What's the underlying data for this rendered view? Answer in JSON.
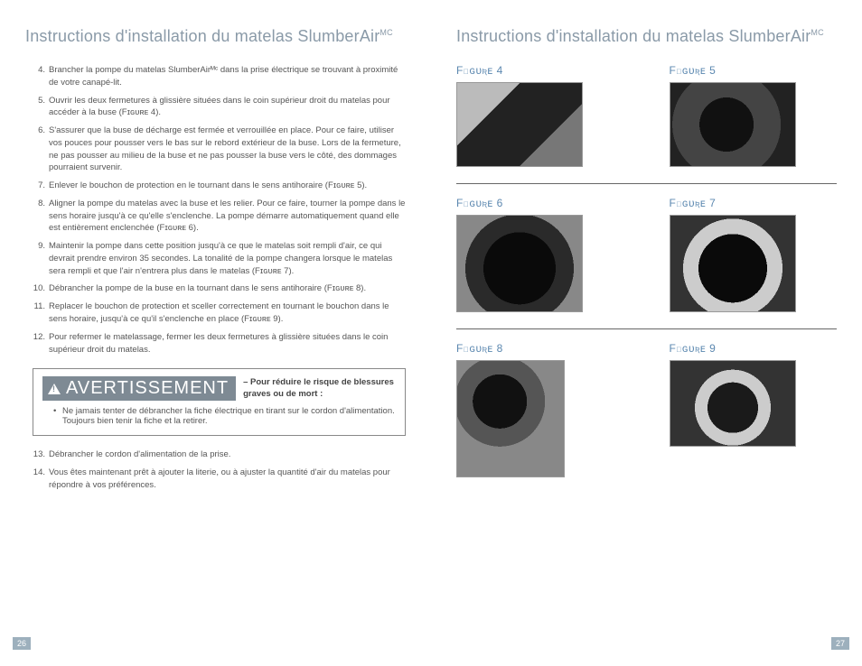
{
  "colors": {
    "title": "#8a9aa8",
    "body_text": "#555555",
    "warn_badge_bg": "#7e8a94",
    "warn_badge_fg": "#ffffff",
    "page_num_bg": "#9db0bd",
    "page_num_fg": "#ffffff",
    "figure_label": "#5c88b0",
    "divider": "#666666",
    "background": "#ffffff"
  },
  "typography": {
    "title_fontsize_pt": 18,
    "body_fontsize_pt": 9.5,
    "warn_text_fontsize_pt": 20,
    "figure_label_fontsize_pt": 12
  },
  "left": {
    "title_main": "Instructions d'installation du matelas SlumberAir",
    "title_sup": "MC",
    "items": [
      {
        "n": "4.",
        "t": "Brancher la pompe du matelas SlumberAirᴹᶜ dans la prise électrique se trouvant à proximité de votre canapé-lit."
      },
      {
        "n": "5.",
        "t": "Ouvrir les deux fermetures à glissière situées dans le coin supérieur droit du matelas pour accéder à la buse (Fɪɢᴜʀᴇ 4)."
      },
      {
        "n": "6.",
        "t": "S'assurer que la buse de décharge est fermée et verrouillée en place.  Pour ce faire, utiliser vos pouces pour pousser vers le bas sur le rebord extérieur de la buse. Lors de la fermeture, ne pas pousser au milieu de la buse et ne pas pousser la buse vers le côté, des dommages pourraient survenir."
      },
      {
        "n": "7.",
        "t": "Enlever le bouchon de protection en le tournant dans le sens antihoraire (Fɪɢᴜʀᴇ 5)."
      },
      {
        "n": "8.",
        "t": "Aligner la pompe du matelas avec la buse et les relier.  Pour ce faire, tourner la pompe dans le sens horaire jusqu'à ce qu'elle s'enclenche. La pompe démarre automatiquement quand elle est entièrement enclenchée (Fɪɢᴜʀᴇ 6)."
      },
      {
        "n": "9.",
        "t": "Maintenir la pompe dans cette position jusqu'à ce que le matelas soit rempli d'air, ce qui devrait prendre environ 35 secondes. La tonalité de la pompe changera lorsque le matelas sera rempli et que l'air n'entrera plus dans le matelas (Fɪɢᴜʀᴇ 7)."
      },
      {
        "n": "10.",
        "t": "Débrancher la pompe de la buse en la tournant dans le sens antihoraire (Fɪɢᴜʀᴇ 8)."
      },
      {
        "n": "11.",
        "t": "Replacer le bouchon de protection et sceller correctement en tournant le bouchon dans le sens horaire, jusqu'à ce qu'il s'enclenche en place (Fɪɢᴜʀᴇ 9)."
      },
      {
        "n": "12.",
        "t": "Pour refermer le matelassage, fermer les deux fermetures à glissière situées dans le coin supérieur droit du matelas."
      }
    ],
    "warning": {
      "label": "AVERTISSEMENT",
      "sub": "– Pour réduire le risque de blessures graves ou de mort :",
      "bullet": "Ne jamais tenter de débrancher la fiche électrique en tirant sur le cordon d'alimentation. Toujours bien tenir la fiche et la retirer."
    },
    "items2": [
      {
        "n": "13.",
        "t": "Débrancher le cordon d'alimentation de la prise."
      },
      {
        "n": "14.",
        "t": "Vous êtes maintenant prêt à ajouter la literie, ou à ajuster la quantité d'air du matelas pour répondre à vos préférences."
      }
    ],
    "page_num": "26"
  },
  "right": {
    "title_main": "Instructions d'installation du matelas SlumberAir",
    "title_sup": "MC",
    "figures": [
      {
        "label": "Fɪɢᴜʀᴇ 4",
        "cls": "f4"
      },
      {
        "label": "Fɪɢᴜʀᴇ 5",
        "cls": "f5"
      },
      {
        "label": "Fɪɢᴜʀᴇ 6",
        "cls": "f6"
      },
      {
        "label": "Fɪɢᴜʀᴇ 7",
        "cls": "f7"
      },
      {
        "label": "Fɪɢᴜʀᴇ 8",
        "cls": "f8"
      },
      {
        "label": "Fɪɢᴜʀᴇ 9",
        "cls": "f9"
      }
    ],
    "page_num": "27"
  }
}
